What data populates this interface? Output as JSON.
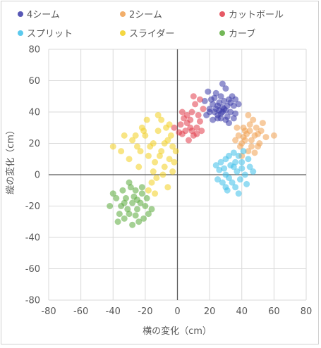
{
  "chart_data": {
    "type": "scatter",
    "title": "",
    "xlabel": "横の変化（cm）",
    "ylabel": "縦の変化（cm）",
    "xlim": [
      -80,
      80
    ],
    "ylim": [
      -80,
      80
    ],
    "x_ticks": [
      -80,
      -60,
      -40,
      -20,
      0,
      20,
      40,
      60,
      80
    ],
    "y_ticks": [
      -80,
      -60,
      -40,
      -20,
      0,
      20,
      40,
      60,
      80
    ],
    "x_tick_labels": [
      "-80",
      "-60",
      "-40",
      "-20",
      "0",
      "20",
      "40",
      "60",
      "80"
    ],
    "y_tick_labels": [
      "-80",
      "-60",
      "-40",
      "-20",
      "0",
      "20",
      "40",
      "60",
      "80"
    ],
    "grid": true,
    "legend_position": "top",
    "series": [
      {
        "name": "4シーム",
        "color": "#3a3aa8",
        "points": [
          [
            28,
            40
          ],
          [
            22,
            45
          ],
          [
            32,
            48
          ],
          [
            25,
            38
          ],
          [
            30,
            35
          ],
          [
            20,
            42
          ],
          [
            35,
            44
          ],
          [
            27,
            50
          ],
          [
            24,
            52
          ],
          [
            33,
            40
          ],
          [
            18,
            38
          ],
          [
            26,
            46
          ],
          [
            29,
            42
          ],
          [
            31,
            37
          ],
          [
            23,
            40
          ],
          [
            36,
            39
          ],
          [
            21,
            48
          ],
          [
            34,
            50
          ],
          [
            27,
            36
          ],
          [
            25,
            44
          ],
          [
            30,
            55
          ],
          [
            17,
            47
          ],
          [
            38,
            45
          ],
          [
            22,
            35
          ],
          [
            28,
            58
          ],
          [
            32,
            33
          ],
          [
            19,
            53
          ],
          [
            35,
            36
          ],
          [
            26,
            41
          ],
          [
            29,
            47
          ],
          [
            24,
            42
          ],
          [
            31,
            44
          ],
          [
            20,
            40
          ],
          [
            27,
            39
          ],
          [
            33,
            46
          ],
          [
            23,
            49
          ],
          [
            28,
            43
          ],
          [
            30,
            41
          ],
          [
            25,
            36
          ],
          [
            36,
            48
          ]
        ]
      },
      {
        "name": "2シーム",
        "color": "#f0a050",
        "points": [
          [
            42,
            28
          ],
          [
            48,
            25
          ],
          [
            40,
            20
          ],
          [
            45,
            32
          ],
          [
            50,
            18
          ],
          [
            38,
            25
          ],
          [
            44,
            15
          ],
          [
            52,
            28
          ],
          [
            46,
            22
          ],
          [
            41,
            30
          ],
          [
            55,
            24
          ],
          [
            47,
            35
          ],
          [
            39,
            18
          ],
          [
            43,
            26
          ],
          [
            49,
            30
          ],
          [
            36,
            22
          ],
          [
            51,
            20
          ],
          [
            45,
            28
          ],
          [
            40,
            12
          ],
          [
            60,
            25
          ],
          [
            53,
            33
          ],
          [
            44,
            38
          ],
          [
            48,
            14
          ],
          [
            37,
            30
          ],
          [
            42,
            22
          ],
          [
            50,
            26
          ],
          [
            46,
            18
          ],
          [
            41,
            24
          ]
        ]
      },
      {
        "name": "カットボール",
        "color": "#e23c4a",
        "points": [
          [
            5,
            28
          ],
          [
            8,
            35
          ],
          [
            12,
            30
          ],
          [
            2,
            32
          ],
          [
            10,
            25
          ],
          [
            6,
            38
          ],
          [
            14,
            34
          ],
          [
            3,
            26
          ],
          [
            9,
            40
          ],
          [
            15,
            28
          ],
          [
            -2,
            30
          ],
          [
            7,
            22
          ],
          [
            11,
            45
          ],
          [
            4,
            36
          ],
          [
            13,
            38
          ],
          [
            16,
            42
          ],
          [
            1,
            27
          ],
          [
            8,
            30
          ],
          [
            10,
            50
          ],
          [
            6,
            33
          ],
          [
            12,
            26
          ],
          [
            3,
            40
          ],
          [
            14,
            48
          ],
          [
            9,
            28
          ]
        ]
      },
      {
        "name": "スプリット",
        "color": "#3ec0ea",
        "points": [
          [
            35,
            5
          ],
          [
            30,
            0
          ],
          [
            40,
            8
          ],
          [
            28,
            -5
          ],
          [
            38,
            12
          ],
          [
            32,
            -2
          ],
          [
            45,
            5
          ],
          [
            26,
            3
          ],
          [
            36,
            -8
          ],
          [
            42,
            0
          ],
          [
            30,
            10
          ],
          [
            33,
            6
          ],
          [
            39,
            -3
          ],
          [
            27,
            8
          ],
          [
            44,
            10
          ],
          [
            31,
            -10
          ],
          [
            37,
            2
          ],
          [
            25,
            -3
          ],
          [
            41,
            15
          ],
          [
            34,
            -5
          ],
          [
            29,
            4
          ],
          [
            47,
            2
          ],
          [
            32,
            12
          ],
          [
            38,
            -12
          ],
          [
            24,
            6
          ],
          [
            36,
            8
          ],
          [
            43,
            -6
          ],
          [
            30,
            -8
          ],
          [
            35,
            14
          ],
          [
            40,
            4
          ]
        ]
      },
      {
        "name": "スライダー",
        "color": "#f2d020",
        "points": [
          [
            -10,
            15
          ],
          [
            -15,
            20
          ],
          [
            -5,
            10
          ],
          [
            -20,
            25
          ],
          [
            -8,
            5
          ],
          [
            -12,
            28
          ],
          [
            -18,
            12
          ],
          [
            -3,
            18
          ],
          [
            -25,
            18
          ],
          [
            -6,
            22
          ],
          [
            -14,
            8
          ],
          [
            -22,
            30
          ],
          [
            -9,
            0
          ],
          [
            -16,
            -5
          ],
          [
            -28,
            22
          ],
          [
            -4,
            25
          ],
          [
            -11,
            12
          ],
          [
            -19,
            35
          ],
          [
            -30,
            10
          ],
          [
            -7,
            30
          ],
          [
            -13,
            -2
          ],
          [
            -24,
            5
          ],
          [
            -2,
            8
          ],
          [
            -17,
            18
          ],
          [
            -35,
            15
          ],
          [
            -10,
            35
          ],
          [
            -6,
            -8
          ],
          [
            -21,
            28
          ],
          [
            -15,
            2
          ],
          [
            -26,
            25
          ],
          [
            -8,
            20
          ],
          [
            -12,
            38
          ],
          [
            -3,
            2
          ],
          [
            -18,
            -10
          ],
          [
            -23,
            15
          ],
          [
            -1,
            15
          ],
          [
            -40,
            18
          ],
          [
            -33,
            25
          ],
          [
            -14,
            -12
          ],
          [
            -5,
            32
          ]
        ]
      },
      {
        "name": "カーブ",
        "color": "#5aaa3a",
        "points": [
          [
            -28,
            -18
          ],
          [
            -25,
            -22
          ],
          [
            -32,
            -15
          ],
          [
            -22,
            -12
          ],
          [
            -30,
            -25
          ],
          [
            -35,
            -20
          ],
          [
            -26,
            -10
          ],
          [
            -20,
            -20
          ],
          [
            -33,
            -28
          ],
          [
            -24,
            -30
          ],
          [
            -38,
            -15
          ],
          [
            -29,
            -8
          ],
          [
            -18,
            -25
          ],
          [
            -31,
            -22
          ],
          [
            -27,
            -14
          ],
          [
            -36,
            -25
          ],
          [
            -23,
            -18
          ],
          [
            -40,
            -12
          ],
          [
            -21,
            -28
          ],
          [
            -34,
            -10
          ],
          [
            -26,
            -26
          ],
          [
            -30,
            -5
          ],
          [
            -19,
            -15
          ],
          [
            -37,
            -30
          ],
          [
            -25,
            -16
          ],
          [
            -42,
            -20
          ],
          [
            -16,
            -22
          ],
          [
            -28,
            -32
          ],
          [
            -33,
            -18
          ],
          [
            -22,
            -8
          ]
        ]
      }
    ]
  }
}
